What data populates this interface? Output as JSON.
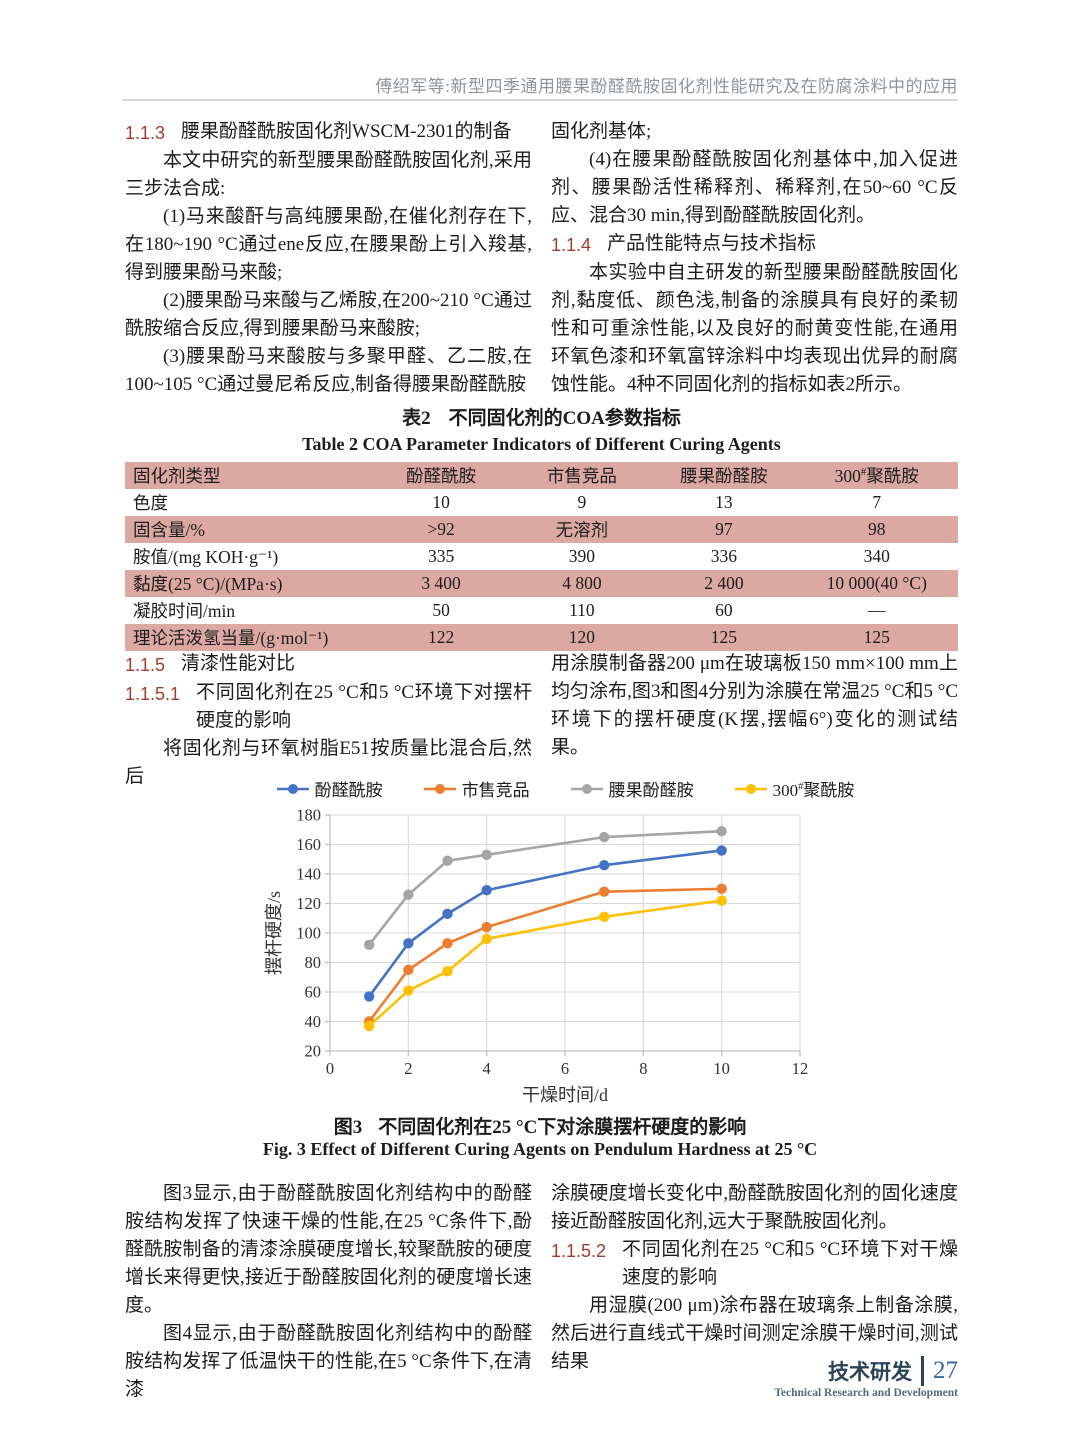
{
  "header": {
    "running_title": "傅绍军等:新型四季通用腰果酚醛酰胺固化剂性能研究及在防腐涂料中的应用"
  },
  "sections": {
    "s113": {
      "num": "1.1.3",
      "title": "腰果酚醛酰胺固化剂WSCM-2301的制备"
    },
    "p113_intro": "本文中研究的新型腰果酚醛酰胺固化剂,采用三步法合成:",
    "p113_step1": "(1)马来酸酐与高纯腰果酚,在催化剂存在下,在180~190 °C通过ene反应,在腰果酚上引入羧基,得到腰果酚马来酸;",
    "p113_step2": "(2)腰果酚马来酸与乙烯胺,在200~210 °C通过酰胺缩合反应,得到腰果酚马来酸胺;",
    "p113_step3": "(3)腰果酚马来酸胺与多聚甲醛、乙二胺,在100~105 °C通过曼尼希反应,制备得腰果酚醛酰胺",
    "p_right_cont": "固化剂基体;",
    "p_step4": "(4)在腰果酚醛酰胺固化剂基体中,加入促进剂、腰果酚活性稀释剂、稀释剂,在50~60 °C反应、混合30 min,得到酚醛酰胺固化剂。",
    "s114": {
      "num": "1.1.4",
      "title": "产品性能特点与技术指标"
    },
    "p114": "本实验中自主研发的新型腰果酚醛酰胺固化剂,黏度低、颜色浅,制备的涂膜具有良好的柔韧性和可重涂性能,以及良好的耐黄变性能,在通用环氧色漆和环氧富锌涂料中均表现出优异的耐腐蚀性能。4种不同固化剂的指标如表2所示。",
    "s115": {
      "num": "1.1.5",
      "title": "清漆性能对比"
    },
    "s1151": {
      "num": "1.1.5.1",
      "title": "不同固化剂在25 °C和5 °C环境下对摆杆硬度的影响"
    },
    "p1151_left": "将固化剂与环氧树脂E51按质量比混合后,然后",
    "p1151_right": "用涂膜制备器200 μm在玻璃板150 mm×100 mm上均匀涂布,图3和图4分别为涂膜在常温25 °C和5 °C环境下的摆杆硬度(K摆,摆幅6°)变化的测试结果。",
    "p_fig3": "图3显示,由于酚醛酰胺固化剂结构中的酚醛胺结构发挥了快速干燥的性能,在25 °C条件下,酚醛酰胺制备的清漆涂膜硬度增长,较聚酰胺的硬度增长来得更快,接近于酚醛胺固化剂的硬度增长速度。",
    "p_fig4_left": "图4显示,由于酚醛酰胺固化剂结构中的酚醛胺结构发挥了低温快干的性能,在5 °C条件下,在清漆",
    "p_fig4_right": "涂膜硬度增长变化中,酚醛酰胺固化剂的固化速度接近酚醛胺固化剂,远大于聚酰胺固化剂。",
    "s1152": {
      "num": "1.1.5.2",
      "title": "不同固化剂在25 °C和5 °C环境下对干燥速度的影响"
    },
    "p1152": "用湿膜(200 μm)涂布器在玻璃条上制备涂膜,然后进行直线式干燥时间测定涂膜干燥时间,测试结果"
  },
  "table": {
    "title_label": "表2",
    "title_text": "不同固化剂的COA参数指标",
    "title_en": "Table 2   COA Parameter Indicators of Different Curing Agents",
    "columns": [
      "固化剂类型",
      "酚醛酰胺",
      "市售竞品",
      "腰果酚醛胺",
      "300#聚酰胺"
    ],
    "rows": [
      {
        "label": "色度",
        "values": [
          "10",
          "9",
          "13",
          "7"
        ]
      },
      {
        "label": "固含量/%",
        "values": [
          ">92",
          "无溶剂",
          "97",
          "98"
        ]
      },
      {
        "label": "胺值/(mg KOH·g⁻¹)",
        "values": [
          "335",
          "390",
          "336",
          "340"
        ]
      },
      {
        "label": "黏度(25 °C)/(MPa·s)",
        "values": [
          "3 400",
          "4 800",
          "2 400",
          "10 000(40 °C)"
        ]
      },
      {
        "label": "凝胶时间/min",
        "values": [
          "50",
          "110",
          "60",
          "—"
        ]
      },
      {
        "label": "理论活泼氢当量/(g·mol⁻¹)",
        "values": [
          "122",
          "120",
          "125",
          "125"
        ]
      }
    ]
  },
  "chart_data": {
    "type": "line",
    "x": [
      1,
      2,
      3,
      4,
      7,
      10
    ],
    "series": [
      {
        "name": "酚醛酰胺",
        "color": "#4472C4",
        "values": [
          57,
          93,
          113,
          129,
          146,
          156
        ]
      },
      {
        "name": "市售竞品",
        "color": "#ED7D31",
        "values": [
          40,
          75,
          93,
          104,
          128,
          130
        ]
      },
      {
        "name": "腰果酚醛胺",
        "color": "#A5A5A5",
        "values": [
          92,
          126,
          149,
          153,
          165,
          169
        ]
      },
      {
        "name": "300#聚酰胺",
        "color": "#FFC000",
        "values": [
          37,
          61,
          74,
          96,
          111,
          122
        ]
      }
    ],
    "xlabel": "干燥时间/d",
    "ylabel": "摆杆硬度/s",
    "xlim": [
      0,
      12
    ],
    "xtick_step": 2,
    "ylim": [
      20,
      180
    ],
    "ytick_step": 20,
    "grid": true,
    "legend_position": "top"
  },
  "figure3": {
    "caption_label": "图3",
    "caption_text": "不同固化剂在25 °C下对涂膜摆杆硬度的影响",
    "caption_en": "Fig. 3   Effect of Different Curing Agents on Pendulum Hardness at 25 °C"
  },
  "footer": {
    "label_zh": "技术研发",
    "label_en": "Technical Research and Development",
    "page": "27"
  },
  "colors": {
    "accent_red": "#A33C30",
    "table_pink": "#DCA9A2",
    "header_gray": "#8F959B",
    "footer_navy": "#2B4257",
    "footer_blue": "#33689E",
    "grid": "#D9D9D9",
    "axis": "#BFBFBF"
  }
}
